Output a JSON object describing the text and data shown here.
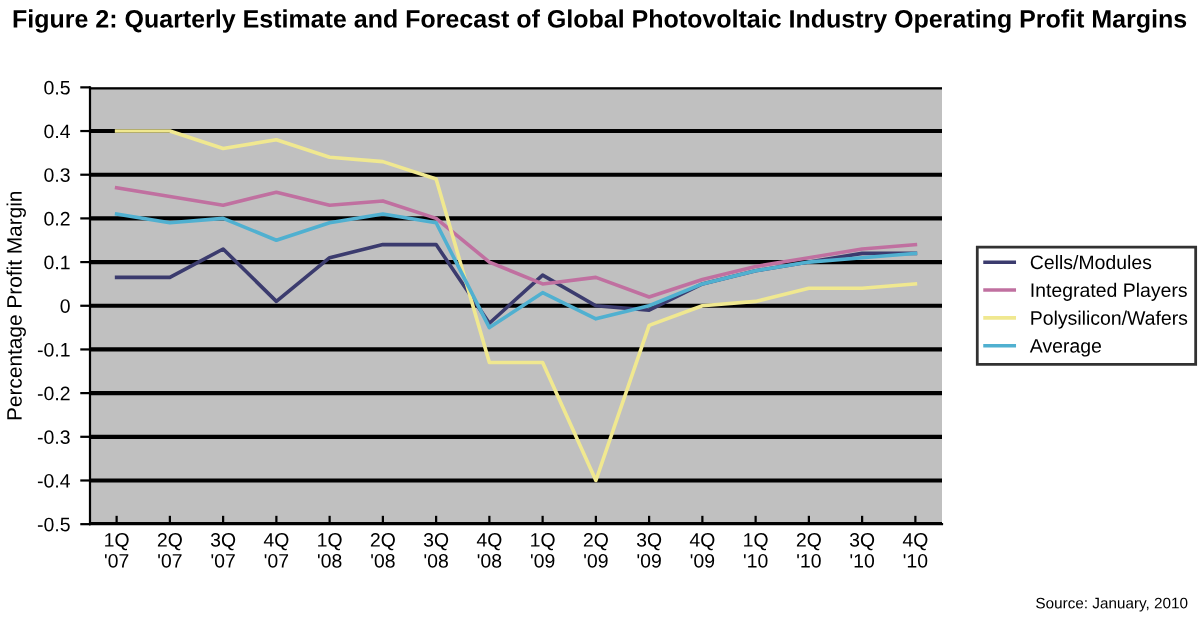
{
  "chart_data": {
    "type": "line",
    "title": "Figure 2: Quarterly Estimate and Forecast of Global Photovoltaic Industry Operating Profit Margins",
    "ylabel": "Percentage Profit Margin",
    "categories": [
      "1Q\n'07",
      "2Q\n'07",
      "3Q\n'07",
      "4Q\n'07",
      "1Q\n'08",
      "2Q\n'08",
      "3Q\n'08",
      "4Q\n'08",
      "1Q\n'09",
      "2Q\n'09",
      "3Q\n'09",
      "4Q\n'09",
      "1Q\n'10",
      "2Q\n'10",
      "3Q\n'10",
      "4Q\n'10"
    ],
    "series": [
      {
        "name": "Cells/Modules",
        "color": "#3b3b6e",
        "values": [
          0.065,
          0.065,
          0.13,
          0.01,
          0.11,
          0.14,
          0.14,
          -0.04,
          0.07,
          0.0,
          -0.01,
          0.05,
          0.08,
          0.1,
          0.12,
          0.12
        ]
      },
      {
        "name": "Integrated Players",
        "color": "#c070a0",
        "values": [
          0.27,
          0.25,
          0.23,
          0.26,
          0.23,
          0.24,
          0.2,
          0.1,
          0.05,
          0.065,
          0.02,
          0.06,
          0.09,
          0.11,
          0.13,
          0.14
        ]
      },
      {
        "name": "Polysilicon/Wafers",
        "color": "#f0e890",
        "values": [
          0.4,
          0.4,
          0.36,
          0.38,
          0.34,
          0.33,
          0.29,
          -0.13,
          -0.13,
          -0.4,
          -0.045,
          0.0,
          0.01,
          0.04,
          0.04,
          0.05
        ]
      },
      {
        "name": "Average",
        "color": "#50b0d0",
        "values": [
          0.21,
          0.19,
          0.2,
          0.15,
          0.19,
          0.21,
          0.19,
          -0.05,
          0.03,
          -0.03,
          0.0,
          0.05,
          0.08,
          0.1,
          0.11,
          0.12
        ]
      }
    ],
    "ylim": [
      -0.5,
      0.5
    ],
    "yticks": [
      {
        "value": -0.5,
        "label": "-0.5"
      },
      {
        "value": -0.4,
        "label": "-0.4"
      },
      {
        "value": -0.3,
        "label": "-0.3"
      },
      {
        "value": -0.2,
        "label": "-0.2"
      },
      {
        "value": -0.1,
        "label": "-0.1"
      },
      0,
      0.1,
      0.2,
      0.3,
      0.4,
      0.5
    ],
    "grid": "y",
    "legend": "right",
    "marker": "none",
    "line_style": "solid",
    "annotations": [
      "Source: January, 2010"
    ]
  }
}
